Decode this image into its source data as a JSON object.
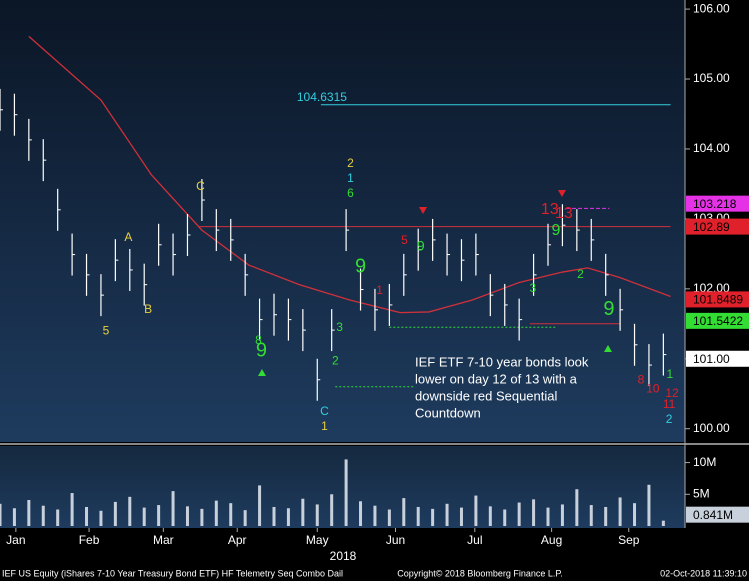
{
  "chart_data": {
    "type": "ohlc",
    "x": [
      0,
      4,
      8,
      12,
      16,
      20,
      24,
      28,
      32,
      36,
      40,
      44,
      48,
      52,
      56,
      60,
      64,
      68,
      72,
      76,
      80,
      84,
      88,
      92,
      96,
      100,
      104,
      108,
      112,
      116,
      120,
      124,
      128,
      132,
      136,
      140,
      144,
      148,
      152,
      156,
      160,
      164,
      168,
      172,
      176,
      180,
      184
    ],
    "high": [
      104.86,
      104.79,
      104.43,
      104.14,
      103.43,
      102.79,
      102.5,
      102.21,
      102.71,
      102.57,
      102.36,
      102.93,
      102.79,
      103.07,
      103.57,
      103.14,
      103.0,
      102.5,
      101.86,
      101.93,
      101.86,
      101.71,
      101.0,
      101.71,
      103.14,
      102.29,
      102.0,
      102.07,
      102.5,
      102.86,
      103.0,
      102.79,
      102.71,
      102.79,
      102.21,
      102.07,
      101.86,
      102.5,
      102.93,
      103.21,
      103.14,
      103.0,
      102.5,
      102.0,
      101.5,
      101.21,
      101.36
    ],
    "low": [
      104.26,
      104.19,
      103.83,
      103.54,
      102.83,
      102.19,
      101.9,
      101.61,
      102.11,
      101.97,
      101.76,
      102.33,
      102.19,
      102.47,
      102.97,
      102.54,
      102.4,
      101.9,
      101.26,
      101.33,
      101.26,
      101.11,
      100.4,
      101.11,
      102.54,
      101.69,
      101.4,
      101.47,
      101.9,
      102.26,
      102.4,
      102.19,
      102.11,
      102.19,
      101.61,
      101.47,
      101.26,
      101.9,
      102.33,
      102.61,
      102.54,
      102.4,
      101.9,
      101.4,
      100.9,
      100.61,
      100.76
    ],
    "close": [
      104.56,
      104.49,
      104.13,
      103.84,
      103.13,
      102.49,
      102.2,
      101.91,
      102.41,
      102.27,
      102.06,
      102.63,
      102.49,
      102.77,
      103.27,
      102.84,
      102.7,
      102.2,
      101.56,
      101.63,
      101.56,
      101.41,
      100.7,
      101.41,
      102.84,
      101.99,
      101.7,
      101.77,
      102.2,
      102.56,
      102.7,
      102.49,
      102.41,
      102.49,
      101.91,
      101.77,
      101.56,
      102.2,
      102.63,
      102.91,
      102.84,
      102.7,
      102.2,
      101.7,
      101.2,
      100.91,
      101.06
    ],
    "color": "#ffffff",
    "ma": {
      "x": [
        8,
        28,
        42,
        56,
        69,
        83,
        97,
        111,
        119,
        131,
        144,
        156,
        163,
        172,
        186
      ],
      "values": [
        105.61,
        104.7,
        103.63,
        102.84,
        102.34,
        102.06,
        101.84,
        101.66,
        101.67,
        101.84,
        102.09,
        102.24,
        102.3,
        102.16,
        101.89
      ],
      "color": "#d0303a"
    },
    "volume": {
      "values": [
        3.5,
        2.8,
        4.1,
        3.2,
        2.6,
        5.2,
        3.0,
        2.4,
        3.8,
        4.6,
        2.9,
        3.3,
        5.5,
        3.1,
        2.7,
        4.0,
        3.6,
        2.5,
        6.4,
        3.0,
        2.8,
        4.3,
        3.4,
        5.0,
        10.5,
        3.9,
        3.2,
        2.6,
        4.4,
        3.0,
        2.7,
        3.5,
        2.9,
        4.8,
        3.1,
        2.6,
        3.7,
        4.2,
        2.9,
        3.4,
        5.8,
        3.3,
        3.0,
        4.5,
        3.6,
        6.5,
        0.841
      ],
      "color": "#c8d0dc",
      "ylim": [
        0,
        12.3
      ],
      "yticks": [
        {
          "value": 10,
          "label": "10M"
        },
        {
          "value": 5,
          "label": "5M"
        }
      ],
      "badge": {
        "value": 0.841,
        "label": "0.841M",
        "color": "#c8d0dc"
      }
    },
    "xlim": [
      0,
      190
    ],
    "xticks": [
      {
        "value": 4.4,
        "label": "Jan"
      },
      {
        "value": 24.7,
        "label": "Feb"
      },
      {
        "value": 45.3,
        "label": "Mar"
      },
      {
        "value": 65.8,
        "label": "Apr"
      },
      {
        "value": 88,
        "label": "May"
      },
      {
        "value": 109.7,
        "label": "Jun"
      },
      {
        "value": 131.7,
        "label": "Jul"
      },
      {
        "value": 153,
        "label": "Aug"
      },
      {
        "value": 174.4,
        "label": "Sep"
      }
    ],
    "xlabel": "2018",
    "ylim": [
      99.81,
      106.13
    ],
    "yticks": [
      {
        "value": 106,
        "label": "106.00"
      },
      {
        "value": 105,
        "label": "105.00"
      },
      {
        "value": 104,
        "label": "104.00"
      },
      {
        "value": 103,
        "label": "103.00"
      },
      {
        "value": 102,
        "label": "102.00"
      },
      {
        "value": 101,
        "label": "101.00"
      },
      {
        "value": 100,
        "label": "100.00"
      }
    ],
    "levels": [
      {
        "value": 104.6315,
        "x": [
          89,
          186
        ],
        "color": "#30d0e0",
        "style": "solid",
        "labeled": true
      },
      {
        "value": 102.89,
        "x": [
          55,
          186
        ],
        "color": "#d0303a",
        "style": "solid",
        "labeled": false
      },
      {
        "value": 103.15,
        "x": [
          157,
          169
        ],
        "color": "#e632e6",
        "style": "dashed",
        "labeled": false
      },
      {
        "value": 101.45,
        "x": [
          108,
          154
        ],
        "color": "#33dd33",
        "style": "dotted",
        "labeled": false
      },
      {
        "value": 100.6,
        "x": [
          93,
          115
        ],
        "color": "#33dd33",
        "style": "dotted",
        "labeled": false
      },
      {
        "value": 101.5,
        "x": [
          147,
          172
        ],
        "color": "#d0303a",
        "style": "solid",
        "labeled": false
      }
    ],
    "badges": [
      {
        "value": 103.218,
        "color": "#e632e6"
      },
      {
        "value": 102.89,
        "color": "#e0202a"
      },
      {
        "value": 101.8489,
        "color": "#e0202a"
      },
      {
        "value": 101.5422,
        "color": "#33dd33"
      },
      {
        "value": 101,
        "label": "101.00",
        "color": "#ffffff"
      }
    ],
    "annotations": [
      {
        "x": 29.4,
        "y": 101.39,
        "text": "5",
        "color": "#e8d040",
        "size": 12
      },
      {
        "x": 35.6,
        "y": 102.73,
        "text": "A",
        "color": "#e8d040",
        "size": 12
      },
      {
        "x": 41.1,
        "y": 101.7,
        "text": "B",
        "color": "#e8d040",
        "size": 12
      },
      {
        "x": 55.6,
        "y": 103.46,
        "text": "C",
        "color": "#e8d040",
        "size": 12
      },
      {
        "x": 72.5,
        "y": 101.11,
        "text": "9",
        "color": "#33dd33",
        "size": 20
      },
      {
        "x": 71.7,
        "y": 101.26,
        "text": "8",
        "color": "#33dd33",
        "size": 12
      },
      {
        "x": 97.2,
        "y": 103.79,
        "text": "2",
        "color": "#e8d040",
        "size": 12
      },
      {
        "x": 97.2,
        "y": 103.57,
        "text": "1",
        "color": "#30d0e0",
        "size": 12
      },
      {
        "x": 97.2,
        "y": 103.36,
        "text": "6",
        "color": "#33dd33",
        "size": 12
      },
      {
        "x": 100,
        "y": 102.31,
        "text": "9",
        "color": "#33dd33",
        "size": 20
      },
      {
        "x": 94.2,
        "y": 101.44,
        "text": "3",
        "color": "#33dd33",
        "size": 12
      },
      {
        "x": 93,
        "y": 100.96,
        "text": "2",
        "color": "#33dd33",
        "size": 12
      },
      {
        "x": 90,
        "y": 100.24,
        "text": "C",
        "color": "#30d0e0",
        "size": 12
      },
      {
        "x": 90,
        "y": 100.03,
        "text": "1",
        "color": "#e8d040",
        "size": 12
      },
      {
        "x": 105.3,
        "y": 101.97,
        "text": "1",
        "color": "#e0202a",
        "size": 12
      },
      {
        "x": 112.2,
        "y": 102.69,
        "text": "5",
        "color": "#e0202a",
        "size": 12
      },
      {
        "x": 116.7,
        "y": 102.6,
        "text": "9",
        "color": "#33dd33",
        "size": 14
      },
      {
        "x": 147.8,
        "y": 102.0,
        "text": "3",
        "color": "#33dd33",
        "size": 12
      },
      {
        "x": 152.5,
        "y": 103.13,
        "text": "13",
        "color": "#e0202a",
        "size": 16
      },
      {
        "x": 156.4,
        "y": 103.07,
        "text": "13",
        "color": "#e0202a",
        "size": 16
      },
      {
        "x": 154.2,
        "y": 102.83,
        "text": "9",
        "color": "#33dd33",
        "size": 16
      },
      {
        "x": 161,
        "y": 102.2,
        "text": "2",
        "color": "#33dd33",
        "size": 12
      },
      {
        "x": 168.9,
        "y": 101.7,
        "text": "9",
        "color": "#33dd33",
        "size": 20
      },
      {
        "x": 177.8,
        "y": 100.69,
        "text": "8",
        "color": "#e0202a",
        "size": 12
      },
      {
        "x": 181.1,
        "y": 100.56,
        "text": "10",
        "color": "#e0202a",
        "size": 12
      },
      {
        "x": 185.8,
        "y": 100.77,
        "text": "1",
        "color": "#33dd33",
        "size": 12
      },
      {
        "x": 186.4,
        "y": 100.5,
        "text": "12",
        "color": "#e0202a",
        "size": 12
      },
      {
        "x": 185.6,
        "y": 100.34,
        "text": "11",
        "color": "#e0202a",
        "size": 12
      },
      {
        "x": 185.6,
        "y": 100.13,
        "text": "2",
        "color": "#30d0e0",
        "size": 12
      }
    ],
    "note": [
      "IEF ETF 7-10 year bonds look",
      "lower on day 12 of 13 with a",
      "downside red Sequential",
      "Countdown"
    ],
    "footer": {
      "left": "IEF US Equity (iShares 7-10 Year Treasury Bond ETF) HF Telemetry Seq Combo  Dail",
      "center": "Copyright© 2018 Bloomberg Finance L.P.",
      "right": "02-Oct-2018 11:39:10"
    }
  }
}
